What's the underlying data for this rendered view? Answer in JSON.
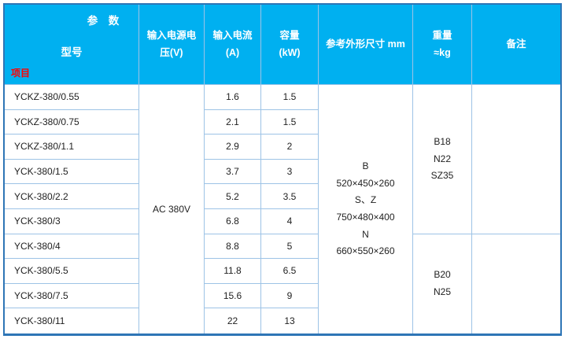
{
  "table": {
    "corner": {
      "param_label": "参　数",
      "model_label": "型号",
      "item_label": "项目"
    },
    "headers": {
      "voltage": "输入电源电\n压(V)",
      "current": "输入电流\n(A)",
      "capacity": "容量\n(kW)",
      "dimensions": "参考外形尺寸 mm",
      "weight": "重量\n≈kg",
      "remarks": "备注"
    },
    "voltage_value": "AC 380V",
    "dimensions_value": "B\n520×450×260\nS、Z\n750×480×400\nN\n660×550×260",
    "weights": [
      "B18\nN22\nSZ35",
      "B20\nN25"
    ],
    "remarks_values": [
      "",
      ""
    ],
    "rows": [
      {
        "model": "YCKZ-380/0.55",
        "current": "1.6",
        "capacity": "1.5"
      },
      {
        "model": "YCKZ-380/0.75",
        "current": "2.1",
        "capacity": "1.5"
      },
      {
        "model": "YCKZ-380/1.1",
        "current": "2.9",
        "capacity": "2"
      },
      {
        "model": "YCK-380/1.5",
        "current": "3.7",
        "capacity": "3"
      },
      {
        "model": "YCK-380/2.2",
        "current": "5.2",
        "capacity": "3.5"
      },
      {
        "model": "YCK-380/3",
        "current": "6.8",
        "capacity": "4"
      },
      {
        "model": "YCK-380/4",
        "current": "8.8",
        "capacity": "5"
      },
      {
        "model": "YCK-380/5.5",
        "current": "11.8",
        "capacity": "6.5"
      },
      {
        "model": "YCK-380/7.5",
        "current": "15.6",
        "capacity": "9"
      },
      {
        "model": "YCK-380/11",
        "current": "22",
        "capacity": "13"
      }
    ]
  },
  "colors": {
    "header_bg": "#00b0f0",
    "header_text": "#ffffff",
    "item_label_text": "#ff0000",
    "inner_border": "#9dc3e6",
    "outer_border": "#2e75b6",
    "body_text": "#1f1f1f"
  }
}
